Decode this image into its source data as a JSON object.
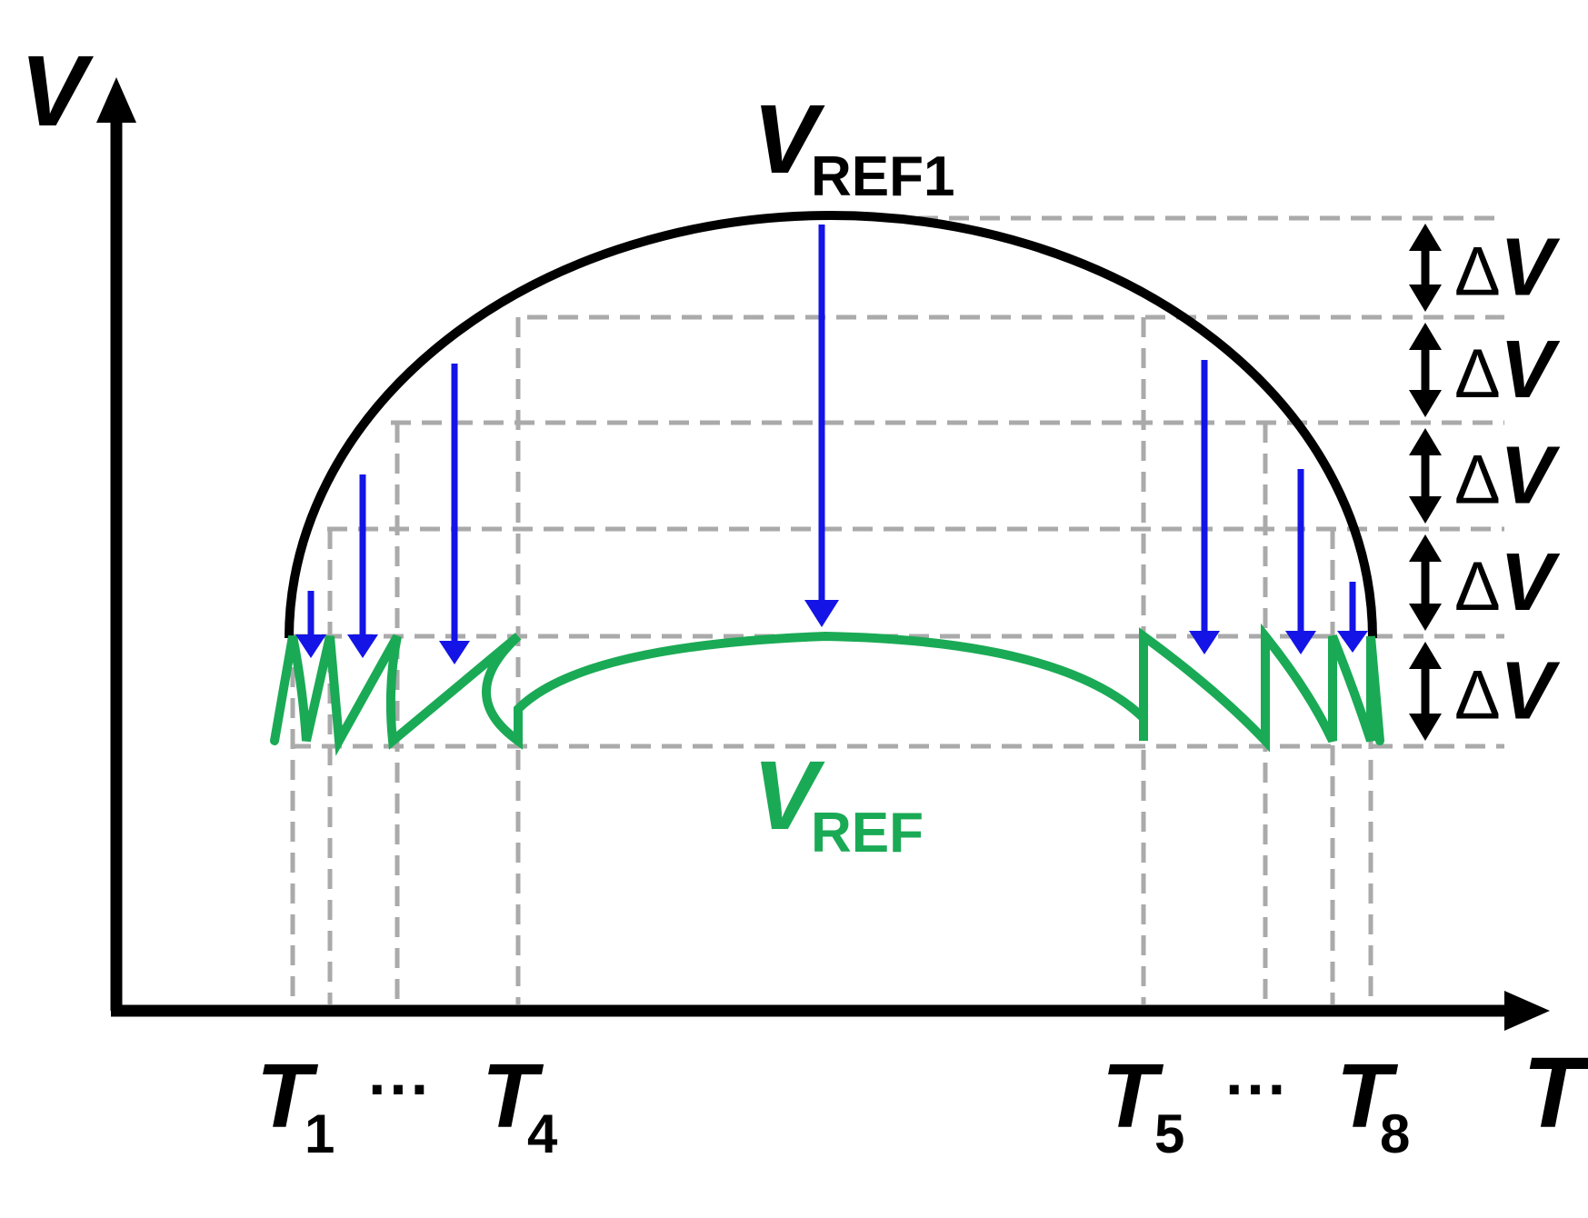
{
  "axes": {
    "y_label": "V",
    "x_label": "T"
  },
  "curves": {
    "upper": {
      "main": "V",
      "sub": "REF1",
      "color": "#000000"
    },
    "lower": {
      "main": "V",
      "sub": "REF",
      "color": "#1aaa55"
    }
  },
  "arrow_color": "#1414e6",
  "delta": {
    "symbol": "Δ",
    "var": "V",
    "count": 5
  },
  "x_ticks": [
    {
      "main": "T",
      "sub": "1"
    },
    {
      "main": "T",
      "sub": "4"
    },
    {
      "main": "T",
      "sub": "5"
    },
    {
      "main": "T",
      "sub": "8"
    }
  ],
  "ellipsis": "···"
}
